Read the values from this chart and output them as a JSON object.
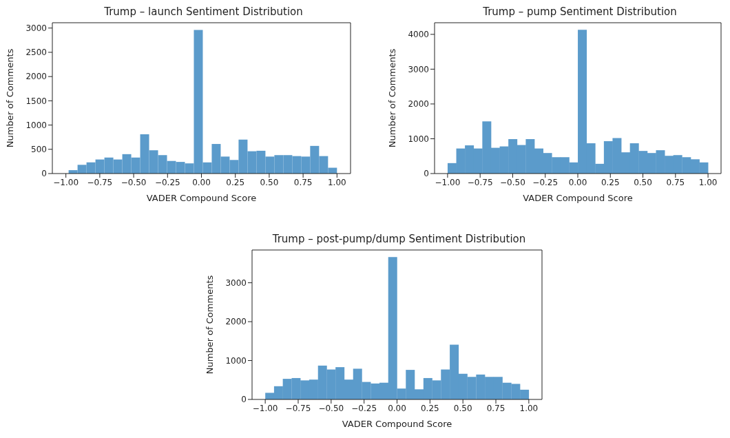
{
  "chart_data": [
    {
      "type": "histogram",
      "title": "Trump – launch Sentiment Distribution",
      "xlabel": "VADER Compound Score",
      "ylabel": "Number of Comments",
      "color": "#5b9bcb",
      "bins": [
        -0.98,
        -0.914,
        -0.848,
        -0.782,
        -0.716,
        -0.65,
        -0.584,
        -0.518,
        -0.452,
        -0.386,
        -0.32,
        -0.254,
        -0.188,
        -0.122,
        -0.056,
        0.01,
        0.076,
        0.142,
        0.208,
        0.274,
        0.34,
        0.406,
        0.472,
        0.538,
        0.604,
        0.67,
        0.736,
        0.802,
        0.868,
        0.934,
        1.0
      ],
      "values": [
        70,
        180,
        230,
        290,
        330,
        290,
        400,
        330,
        810,
        480,
        380,
        260,
        240,
        210,
        2960,
        230,
        610,
        350,
        280,
        700,
        460,
        470,
        350,
        380,
        380,
        360,
        350,
        570,
        360,
        120
      ],
      "xlim": [
        -1.1,
        1.1
      ],
      "ylim": [
        0,
        3110
      ],
      "xticks": [
        {
          "value": -1,
          "label": "−1.00"
        },
        {
          "value": -0.75,
          "label": "−0.75"
        },
        {
          "value": -0.5,
          "label": "−0.50"
        },
        {
          "value": -0.25,
          "label": "−0.25"
        },
        {
          "value": 0,
          "label": "0.00"
        },
        {
          "value": 0.25,
          "label": "0.25"
        },
        {
          "value": 0.5,
          "label": "0.50"
        },
        {
          "value": 0.75,
          "label": "0.75"
        },
        {
          "value": 1,
          "label": "1.00"
        }
      ],
      "yticks": [
        0,
        500,
        1000,
        1500,
        2000,
        2500,
        3000
      ]
    },
    {
      "type": "histogram",
      "title": "Trump – pump Sentiment Distribution",
      "xlabel": "VADER Compound Score",
      "ylabel": "Number of Comments",
      "color": "#5b9bcb",
      "bins": [
        -1.0,
        -0.933,
        -0.867,
        -0.8,
        -0.733,
        -0.667,
        -0.6,
        -0.533,
        -0.467,
        -0.4,
        -0.333,
        -0.267,
        -0.2,
        -0.133,
        -0.067,
        0.0,
        0.067,
        0.133,
        0.2,
        0.267,
        0.333,
        0.4,
        0.467,
        0.533,
        0.6,
        0.667,
        0.733,
        0.8,
        0.867,
        0.933,
        1.0
      ],
      "values": [
        300,
        720,
        810,
        720,
        1500,
        740,
        780,
        990,
        820,
        990,
        720,
        590,
        470,
        470,
        320,
        4130,
        870,
        280,
        930,
        1020,
        610,
        870,
        650,
        590,
        670,
        510,
        530,
        470,
        410,
        320
      ],
      "xlim": [
        -1.1,
        1.1
      ],
      "ylim": [
        0,
        4334
      ],
      "xticks": [
        {
          "value": -1,
          "label": "−1.00"
        },
        {
          "value": -0.75,
          "label": "−0.75"
        },
        {
          "value": -0.5,
          "label": "−0.50"
        },
        {
          "value": -0.25,
          "label": "−0.25"
        },
        {
          "value": 0,
          "label": "0.00"
        },
        {
          "value": 0.25,
          "label": "0.25"
        },
        {
          "value": 0.5,
          "label": "0.50"
        },
        {
          "value": 0.75,
          "label": "0.75"
        },
        {
          "value": 1,
          "label": "1.00"
        }
      ],
      "yticks": [
        0,
        1000,
        2000,
        3000,
        4000
      ]
    },
    {
      "type": "histogram",
      "title": "Trump – post-pump/dump Sentiment Distribution",
      "xlabel": "VADER Compound Score",
      "ylabel": "Number of Comments",
      "color": "#5b9bcb",
      "bins": [
        -1.0,
        -0.933,
        -0.867,
        -0.8,
        -0.733,
        -0.667,
        -0.6,
        -0.533,
        -0.467,
        -0.4,
        -0.333,
        -0.267,
        -0.2,
        -0.133,
        -0.067,
        0.0,
        0.067,
        0.133,
        0.2,
        0.267,
        0.333,
        0.4,
        0.467,
        0.533,
        0.6,
        0.667,
        0.733,
        0.8,
        0.867,
        0.933,
        1.0
      ],
      "values": [
        170,
        340,
        530,
        550,
        490,
        510,
        870,
        770,
        830,
        510,
        790,
        450,
        410,
        430,
        3660,
        280,
        760,
        260,
        550,
        490,
        770,
        1410,
        660,
        580,
        640,
        580,
        580,
        430,
        400,
        250
      ],
      "xlim": [
        -1.1,
        1.1
      ],
      "ylim": [
        0,
        3843
      ],
      "xticks": [
        {
          "value": -1,
          "label": "−1.00"
        },
        {
          "value": -0.75,
          "label": "−0.75"
        },
        {
          "value": -0.5,
          "label": "−0.50"
        },
        {
          "value": -0.25,
          "label": "−0.25"
        },
        {
          "value": 0,
          "label": "0.00"
        },
        {
          "value": 0.25,
          "label": "0.25"
        },
        {
          "value": 0.5,
          "label": "0.50"
        },
        {
          "value": 0.75,
          "label": "0.75"
        },
        {
          "value": 1,
          "label": "1.00"
        }
      ],
      "yticks": [
        0,
        1000,
        2000,
        3000
      ]
    }
  ]
}
